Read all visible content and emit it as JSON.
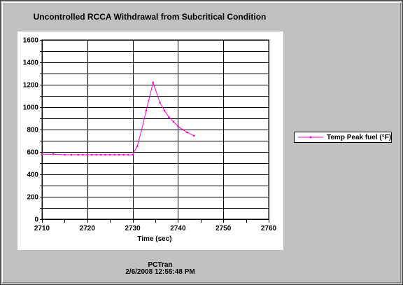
{
  "colors": {
    "series": "#ff00cc",
    "grid": "#000000",
    "panel_bg": "#ffffff",
    "window_bg": "#c0c0c0"
  },
  "footer": {
    "app_name": "PCTran",
    "timestamp": "2/6/2008 12:55:48 PM"
  },
  "chart_data": {
    "type": "line",
    "title": "Uncontrolled RCCA Withdrawal from Subcritical Condition",
    "xlabel": "Time (sec)",
    "ylabel": "",
    "xlim": [
      2710,
      2760
    ],
    "ylim": [
      0,
      1600
    ],
    "x_ticks": [
      2710,
      2720,
      2730,
      2740,
      2750,
      2760
    ],
    "y_ticks": [
      0,
      200,
      400,
      600,
      800,
      1000,
      1200,
      1400,
      1600
    ],
    "grid": true,
    "legend_position": "right",
    "series": [
      {
        "name": "Temp Peak fuel (°F)",
        "color": "#ff00cc",
        "x": [
          2710,
          2712.5,
          2715,
          2716.5,
          2718,
          2719,
          2720,
          2721,
          2722,
          2723,
          2724,
          2725,
          2726,
          2727,
          2728,
          2729,
          2730,
          2731,
          2732,
          2733,
          2734.5,
          2736,
          2737,
          2738,
          2739,
          2740,
          2741,
          2742,
          2743.5
        ],
        "y": [
          580,
          580,
          575,
          575,
          575,
          575,
          575,
          575,
          575,
          575,
          575,
          575,
          575,
          575,
          575,
          575,
          575,
          650,
          800,
          970,
          1220,
          1040,
          970,
          910,
          870,
          830,
          800,
          775,
          745
        ]
      }
    ]
  }
}
